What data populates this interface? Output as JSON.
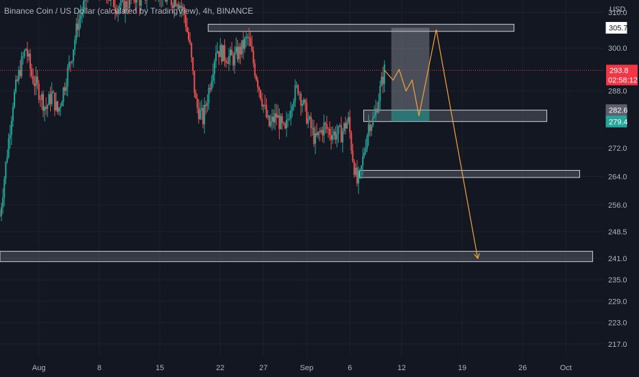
{
  "header": {
    "title": "Binance Coin / US Dollar (calculated by TradingView), 4h, BINANCE"
  },
  "chart_data": {
    "type": "candlestick",
    "title": "Binance Coin / US Dollar (calculated by TradingView), 4h, BINANCE",
    "currency_label": "USD",
    "x_ticks": [
      {
        "label": "Aug",
        "day": 0
      },
      {
        "label": "8",
        "day": 7
      },
      {
        "label": "15",
        "day": 14
      },
      {
        "label": "22",
        "day": 21
      },
      {
        "label": "27",
        "day": 26
      },
      {
        "label": "Sep",
        "day": 31
      },
      {
        "label": "6",
        "day": 36
      },
      {
        "label": "12",
        "day": 42
      },
      {
        "label": "19",
        "day": 49
      },
      {
        "label": "26",
        "day": 56
      },
      {
        "label": "Oct",
        "day": 61
      }
    ],
    "x_range_days": [
      -4.5,
      65.5
    ],
    "y_ticks": [
      310.0,
      300.0,
      288.0,
      272.0,
      264.0,
      256.0,
      248.5,
      241.0,
      235.0,
      229.0,
      223.0,
      217.0
    ],
    "y_range": [
      213.5,
      313.5
    ],
    "current_price": {
      "label": "293.8",
      "value": 293.8,
      "countdown": "02:58:12",
      "color": "#f23645"
    },
    "price_tags": [
      {
        "label": "305.7",
        "value": 305.7,
        "style": "outline"
      },
      {
        "label": "282.6",
        "value": 282.6,
        "style": "gray"
      },
      {
        "label": "279.4",
        "value": 279.4,
        "style": "teal"
      }
    ],
    "colors": {
      "up": "#26a69a",
      "down": "#ef5350",
      "projection": "#f7a440",
      "background": "#131722",
      "grid": "#1e222d",
      "axis_text": "#b2b5be"
    },
    "candle_anchors": [
      [
        -4.5,
        253
      ],
      [
        -3.8,
        268
      ],
      [
        -3.0,
        285
      ],
      [
        -2.2,
        294
      ],
      [
        -1.5,
        300
      ],
      [
        -0.8,
        292
      ],
      [
        0,
        288
      ],
      [
        0.8,
        283
      ],
      [
        1.5,
        287
      ],
      [
        2.2,
        282
      ],
      [
        3.0,
        290
      ],
      [
        3.8,
        298
      ],
      [
        4.5,
        307
      ],
      [
        5.2,
        312
      ],
      [
        6.0,
        318
      ],
      [
        6.8,
        315
      ],
      [
        7.5,
        318
      ],
      [
        8.2,
        314
      ],
      [
        9.0,
        312
      ],
      [
        10.0,
        312
      ],
      [
        11.0,
        315
      ],
      [
        12.0,
        313
      ],
      [
        13.0,
        318
      ],
      [
        14.0,
        316
      ],
      [
        15.0,
        313
      ],
      [
        16.0,
        314
      ],
      [
        16.8,
        310
      ],
      [
        17.5,
        300
      ],
      [
        18.2,
        284
      ],
      [
        19.0,
        280
      ],
      [
        19.8,
        290
      ],
      [
        20.5,
        300
      ],
      [
        21.5,
        298
      ],
      [
        22.5,
        297
      ],
      [
        23.5,
        300
      ],
      [
        24.2,
        303
      ],
      [
        25.0,
        294
      ],
      [
        25.8,
        286
      ],
      [
        26.6,
        278
      ],
      [
        27.5,
        281
      ],
      [
        28.5,
        276
      ],
      [
        29.3,
        286
      ],
      [
        30.0,
        289
      ],
      [
        31.0,
        281
      ],
      [
        32.0,
        274
      ],
      [
        33.0,
        278
      ],
      [
        34.0,
        276
      ],
      [
        35.0,
        276
      ],
      [
        35.8,
        280
      ],
      [
        36.3,
        270
      ],
      [
        36.8,
        262
      ],
      [
        37.2,
        264
      ],
      [
        37.7,
        272
      ],
      [
        38.2,
        279
      ],
      [
        38.8,
        280
      ],
      [
        39.3,
        286
      ],
      [
        40.0,
        293.8
      ]
    ],
    "zones": [
      {
        "from_day": 19.6,
        "to_day": 55.0,
        "low": 304.7,
        "high": 306.7
      },
      {
        "from_day": 37.6,
        "to_day": 58.8,
        "low": 279.4,
        "high": 282.6
      },
      {
        "from_day": 37.1,
        "to_day": 62.6,
        "low": 263.7,
        "high": 265.7
      },
      {
        "from_day": -4.5,
        "to_day": 64.1,
        "low": 240.1,
        "high": 243.0
      }
    ],
    "projection_box": {
      "from_day": 40.8,
      "to_day": 45.2,
      "low": 279.4,
      "high": 305.7
    },
    "projection_path": [
      [
        40.0,
        293.8
      ],
      [
        41.0,
        291.0
      ],
      [
        41.7,
        294.0
      ],
      [
        42.5,
        288.0
      ],
      [
        43.2,
        291.0
      ],
      [
        44.0,
        281.0
      ],
      [
        46.0,
        305.2
      ],
      [
        50.8,
        241.0
      ]
    ]
  }
}
